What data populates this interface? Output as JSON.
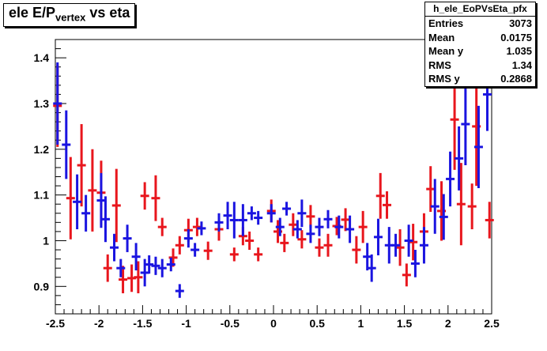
{
  "title": {
    "prefix": "ele E/P",
    "subscript": "vertex",
    "suffix": " vs eta"
  },
  "stats": {
    "name": "h_ele_EoPVsEta_pfx",
    "rows": [
      {
        "label": "Entries",
        "value": "3073"
      },
      {
        "label": "Mean",
        "value": "0.0175"
      },
      {
        "label": "Mean y",
        "value": "1.035"
      },
      {
        "label": "RMS",
        "value": "1.34"
      },
      {
        "label": "RMS y",
        "value": "0.2868"
      }
    ]
  },
  "chart_data": {
    "type": "scatter",
    "title": "ele E/Pvertex vs eta",
    "xlabel": "",
    "ylabel": "",
    "xlim": [
      -2.5,
      2.5
    ],
    "ylim": [
      0.84,
      1.44
    ],
    "x_ticks": [
      "-2.5",
      "-2",
      "-1.5",
      "-1",
      "-0.5",
      "0",
      "0.5",
      "1",
      "1.5",
      "2",
      "2.5"
    ],
    "y_ticks": [
      "0.9",
      "1",
      "1.1",
      "1.2",
      "1.3",
      "1.4"
    ],
    "grid": false,
    "colors": {
      "red": "#e8161d",
      "blue": "#1a14e0"
    },
    "series": [
      {
        "color": "red",
        "points": [
          {
            "x": -2.475,
            "y": 1.295,
            "err": 0.09
          },
          {
            "x": -2.325,
            "y": 1.093,
            "err": 0.09
          },
          {
            "x": -2.2,
            "y": 1.165,
            "err": 0.09
          },
          {
            "x": -2.075,
            "y": 1.11,
            "err": 0.09
          },
          {
            "x": -1.975,
            "y": 1.105,
            "err": 0.07
          },
          {
            "x": -1.9,
            "y": 0.94,
            "err": 0.03
          },
          {
            "x": -1.8,
            "y": 1.077,
            "err": 0.08
          },
          {
            "x": -1.725,
            "y": 0.915,
            "err": 0.03
          },
          {
            "x": -1.625,
            "y": 0.918,
            "err": 0.03
          },
          {
            "x": -1.55,
            "y": 0.92,
            "err": 0.035
          },
          {
            "x": -1.475,
            "y": 1.098,
            "err": 0.03
          },
          {
            "x": -1.35,
            "y": 1.093,
            "err": 0.05
          },
          {
            "x": -1.275,
            "y": 1.03,
            "err": 0.02
          },
          {
            "x": -1.15,
            "y": 0.963,
            "err": 0.02
          },
          {
            "x": -1.075,
            "y": 0.99,
            "err": 0.02
          },
          {
            "x": -0.975,
            "y": 1.023,
            "err": 0.025
          },
          {
            "x": -0.875,
            "y": 1.03,
            "err": 0.02
          },
          {
            "x": -0.75,
            "y": 0.978,
            "err": 0.02
          },
          {
            "x": -0.625,
            "y": 1.025,
            "err": 0.025
          },
          {
            "x": -0.45,
            "y": 0.97,
            "err": 0.015
          },
          {
            "x": -0.35,
            "y": 1.01,
            "err": 0.02
          },
          {
            "x": -0.275,
            "y": 1.0,
            "err": 0.02
          },
          {
            "x": -0.175,
            "y": 0.97,
            "err": 0.015
          },
          {
            "x": -0.025,
            "y": 1.065,
            "err": 0.025
          },
          {
            "x": 0.05,
            "y": 1.02,
            "err": 0.025
          },
          {
            "x": 0.125,
            "y": 0.995,
            "err": 0.02
          },
          {
            "x": 0.225,
            "y": 1.035,
            "err": 0.025
          },
          {
            "x": 0.325,
            "y": 1.003,
            "err": 0.02
          },
          {
            "x": 0.425,
            "y": 1.053,
            "err": 0.025
          },
          {
            "x": 0.525,
            "y": 0.985,
            "err": 0.02
          },
          {
            "x": 0.625,
            "y": 0.99,
            "err": 0.025
          },
          {
            "x": 0.725,
            "y": 1.032,
            "err": 0.02
          },
          {
            "x": 0.825,
            "y": 1.046,
            "err": 0.025
          },
          {
            "x": 0.95,
            "y": 0.98,
            "err": 0.03
          },
          {
            "x": 1.025,
            "y": 1.03,
            "err": 0.035
          },
          {
            "x": 1.225,
            "y": 1.098,
            "err": 0.05
          },
          {
            "x": 1.3,
            "y": 1.078,
            "err": 0.03
          },
          {
            "x": 1.45,
            "y": 0.985,
            "err": 0.04
          },
          {
            "x": 1.525,
            "y": 0.925,
            "err": 0.025
          },
          {
            "x": 1.6,
            "y": 0.997,
            "err": 0.04
          },
          {
            "x": 1.725,
            "y": 1.02,
            "err": 0.04
          },
          {
            "x": 1.8,
            "y": 1.113,
            "err": 0.05
          },
          {
            "x": 1.925,
            "y": 1.065,
            "err": 0.065
          },
          {
            "x": 2.075,
            "y": 1.265,
            "err": 0.11
          },
          {
            "x": 2.15,
            "y": 1.08,
            "err": 0.09
          },
          {
            "x": 2.275,
            "y": 1.075,
            "err": 0.05
          },
          {
            "x": 2.325,
            "y": 1.25,
            "err": 0.13
          },
          {
            "x": 2.475,
            "y": 1.045,
            "err": 0.04
          }
        ]
      },
      {
        "color": "blue",
        "points": [
          {
            "x": -2.475,
            "y": 1.3,
            "err": 0.09
          },
          {
            "x": -2.375,
            "y": 1.21,
            "err": 0.075
          },
          {
            "x": -2.25,
            "y": 1.085,
            "err": 0.06
          },
          {
            "x": -2.15,
            "y": 1.06,
            "err": 0.04
          },
          {
            "x": -1.975,
            "y": 1.088,
            "err": 0.06
          },
          {
            "x": -1.925,
            "y": 1.047,
            "err": 0.05
          },
          {
            "x": -1.825,
            "y": 0.985,
            "err": 0.03
          },
          {
            "x": -1.75,
            "y": 0.94,
            "err": 0.02
          },
          {
            "x": -1.675,
            "y": 1.005,
            "err": 0.03
          },
          {
            "x": -1.575,
            "y": 0.965,
            "err": 0.03
          },
          {
            "x": -1.475,
            "y": 0.93,
            "err": 0.03
          },
          {
            "x": -1.425,
            "y": 0.948,
            "err": 0.02
          },
          {
            "x": -1.35,
            "y": 0.945,
            "err": 0.02
          },
          {
            "x": -1.275,
            "y": 0.94,
            "err": 0.02
          },
          {
            "x": -1.175,
            "y": 0.948,
            "err": 0.015
          },
          {
            "x": -1.075,
            "y": 0.89,
            "err": 0.015
          },
          {
            "x": -0.975,
            "y": 1.005,
            "err": 0.02
          },
          {
            "x": -0.9,
            "y": 0.98,
            "err": 0.015
          },
          {
            "x": -0.825,
            "y": 1.027,
            "err": 0.015
          },
          {
            "x": -0.625,
            "y": 1.04,
            "err": 0.02
          },
          {
            "x": -0.525,
            "y": 1.055,
            "err": 0.03
          },
          {
            "x": -0.45,
            "y": 1.045,
            "err": 0.04
          },
          {
            "x": -0.35,
            "y": 1.045,
            "err": 0.035
          },
          {
            "x": -0.25,
            "y": 1.06,
            "err": 0.015
          },
          {
            "x": -0.175,
            "y": 1.05,
            "err": 0.015
          },
          {
            "x": -0.025,
            "y": 1.06,
            "err": 0.02
          },
          {
            "x": 0.075,
            "y": 1.03,
            "err": 0.02
          },
          {
            "x": 0.15,
            "y": 1.07,
            "err": 0.015
          },
          {
            "x": 0.275,
            "y": 1.025,
            "err": 0.02
          },
          {
            "x": 0.325,
            "y": 1.06,
            "err": 0.03
          },
          {
            "x": 0.425,
            "y": 1.015,
            "err": 0.02
          },
          {
            "x": 0.525,
            "y": 1.03,
            "err": 0.02
          },
          {
            "x": 0.625,
            "y": 1.047,
            "err": 0.02
          },
          {
            "x": 0.75,
            "y": 1.03,
            "err": 0.025
          },
          {
            "x": 0.875,
            "y": 1.025,
            "err": 0.03
          },
          {
            "x": 1.075,
            "y": 0.965,
            "err": 0.03
          },
          {
            "x": 1.125,
            "y": 0.94,
            "err": 0.03
          },
          {
            "x": 1.2,
            "y": 1.008,
            "err": 0.04
          },
          {
            "x": 1.325,
            "y": 0.99,
            "err": 0.04
          },
          {
            "x": 1.4,
            "y": 0.99,
            "err": 0.025
          },
          {
            "x": 1.55,
            "y": 1.0,
            "err": 0.035
          },
          {
            "x": 1.625,
            "y": 0.95,
            "err": 0.03
          },
          {
            "x": 1.725,
            "y": 0.99,
            "err": 0.04
          },
          {
            "x": 1.85,
            "y": 1.075,
            "err": 0.06
          },
          {
            "x": 1.95,
            "y": 1.052,
            "err": 0.05
          },
          {
            "x": 2.025,
            "y": 1.135,
            "err": 0.06
          },
          {
            "x": 2.125,
            "y": 1.18,
            "err": 0.07
          },
          {
            "x": 2.2,
            "y": 1.255,
            "err": 0.09
          },
          {
            "x": 2.35,
            "y": 1.205,
            "err": 0.09
          },
          {
            "x": 2.45,
            "y": 1.32,
            "err": 0.08
          }
        ]
      }
    ]
  }
}
